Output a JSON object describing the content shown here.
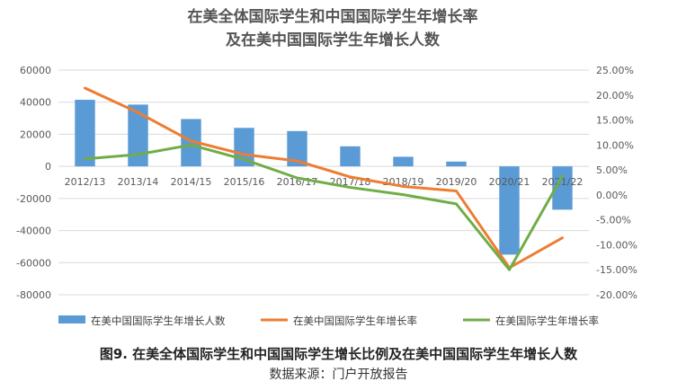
{
  "chart_data": {
    "type": "bar+line",
    "title_line1": "在美全体国际学生和中国国际学生年增长率",
    "title_line2": "及在美中国国际学生年增长人数",
    "categories": [
      "2012/13",
      "2013/14",
      "2014/15",
      "2015/16",
      "2016/17",
      "2017/18",
      "2018/19",
      "2019/20",
      "2020/21",
      "2021/22"
    ],
    "left_axis": {
      "ylim": [
        -80000,
        60000
      ],
      "ticks": [
        "60000",
        "40000",
        "20000",
        "0",
        "-20000",
        "-40000",
        "-60000",
        "-80000"
      ],
      "tick_values": [
        60000,
        40000,
        20000,
        0,
        -20000,
        -40000,
        -60000,
        -80000
      ]
    },
    "right_axis": {
      "ylim": [
        -20,
        25
      ],
      "ticks": [
        "25.00%",
        "20.00%",
        "15.00%",
        "10.00%",
        "5.00%",
        "0.00%",
        "-5.00%",
        "-10.00%",
        "-15.00%",
        "-20.00%"
      ],
      "tick_values": [
        25,
        20,
        15,
        10,
        5,
        0,
        -5,
        -10,
        -15,
        -20
      ]
    },
    "series": [
      {
        "name": "在美中国国际学生年增长人数",
        "type": "bar",
        "axis": "left",
        "color": "#5b9bd5",
        "values": [
          41500,
          38500,
          29500,
          24000,
          22000,
          12500,
          6000,
          3000,
          -55000,
          -27000
        ]
      },
      {
        "name": "在美中国国际学生年增长率",
        "type": "line",
        "axis": "right",
        "color": "#ed7d31",
        "values": [
          21.4,
          16.5,
          10.8,
          8.1,
          6.8,
          3.6,
          1.7,
          0.8,
          -14.6,
          -8.6
        ]
      },
      {
        "name": "在美国际学生年增长率",
        "type": "line",
        "axis": "right",
        "color": "#70ad47",
        "values": [
          7.2,
          8.1,
          10.0,
          7.1,
          3.4,
          1.5,
          0.05,
          -1.8,
          -15.0,
          3.8
        ]
      }
    ],
    "grid": "horizontal",
    "legend_position": "bottom"
  },
  "caption": "图9. 在美全体国际学生和中国国际学生增长比例及在美中国国际学生年增长人数",
  "source": "数据来源：门户开放报告"
}
